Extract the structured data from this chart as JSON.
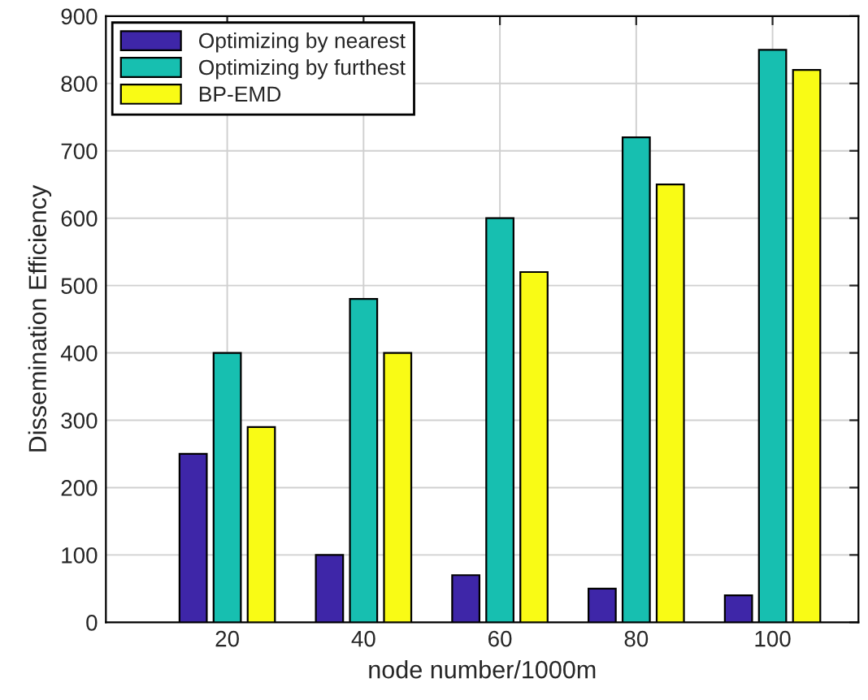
{
  "chart_data": {
    "type": "bar",
    "xlabel": "node number/1000m",
    "ylabel": "Dissemination Efficiency",
    "categories": [
      "20",
      "40",
      "60",
      "80",
      "100"
    ],
    "series": [
      {
        "name": "Optimizing by nearest",
        "color": "#3e26a8",
        "values": [
          250,
          100,
          70,
          50,
          40
        ]
      },
      {
        "name": "Optimizing by furthest",
        "color": "#17bfb0",
        "values": [
          400,
          480,
          600,
          720,
          850
        ]
      },
      {
        "name": "BP-EMD",
        "color": "#f9fb15",
        "values": [
          290,
          400,
          520,
          650,
          820
        ]
      }
    ],
    "ylim": [
      0,
      900
    ],
    "yticks": [
      0,
      100,
      200,
      300,
      400,
      500,
      600,
      700,
      800,
      900
    ],
    "grid": true,
    "legend": "top left"
  }
}
